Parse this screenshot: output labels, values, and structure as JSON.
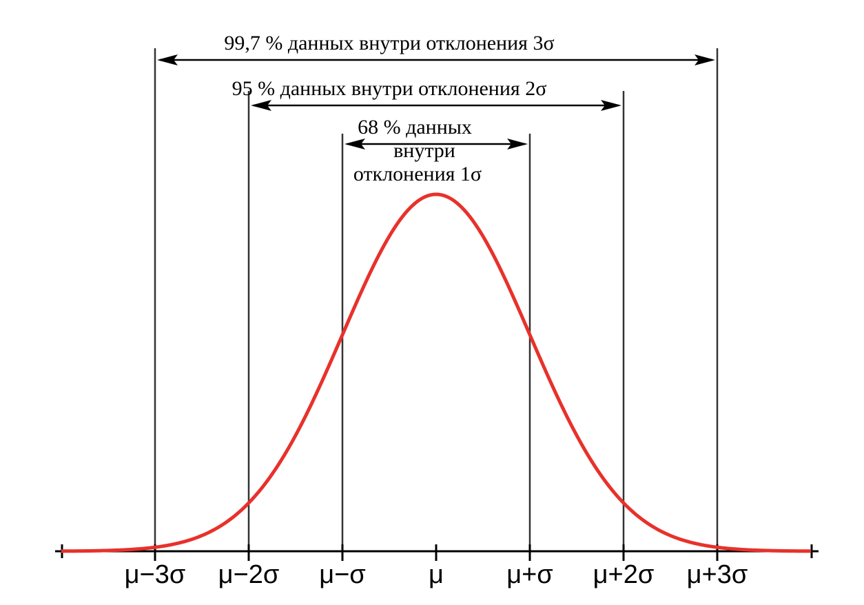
{
  "chart_data": {
    "type": "line",
    "curve": "normal-distribution",
    "line_color": "#e8312b",
    "x_ticks": [
      "μ−3σ",
      "μ−2σ",
      "μ−σ",
      "μ",
      "μ+σ",
      "μ+2σ",
      "μ+3σ"
    ],
    "x_tick_sigmas": [
      -3,
      -2,
      -1,
      0,
      1,
      2,
      3
    ],
    "x_range_sigma": [
      -4,
      4
    ],
    "bands": [
      {
        "sigma": 3,
        "label": "99,7 % данных внутри отклонения 3σ"
      },
      {
        "sigma": 2,
        "label": "95 % данных внутри отклонения 2σ"
      },
      {
        "sigma": 1,
        "label_lines": [
          "68 % данных",
          "внутри",
          "отклонения 1σ"
        ]
      }
    ]
  }
}
